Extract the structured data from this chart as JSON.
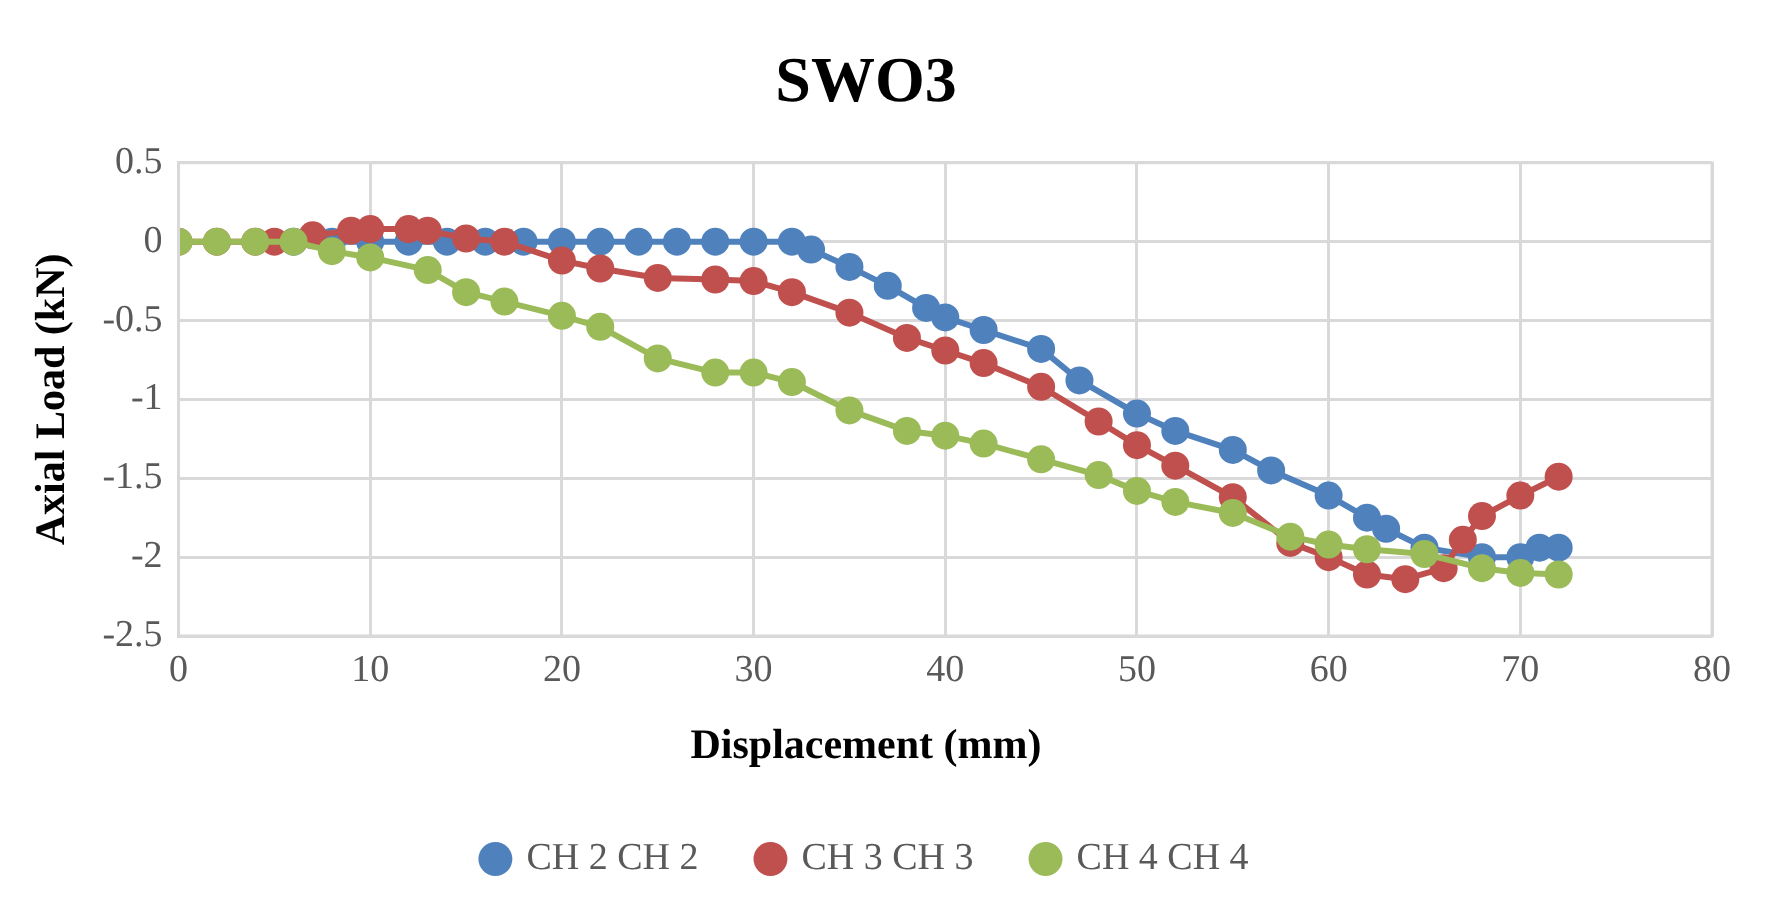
{
  "chart_data": {
    "type": "line",
    "title": "SWO3",
    "xlabel": "Displacement (mm)",
    "ylabel": "Axial Load (kN)",
    "xlim": [
      0,
      80
    ],
    "xticks": [
      0,
      10,
      20,
      30,
      40,
      50,
      60,
      70,
      80
    ],
    "ylim": [
      -2.5,
      0.5
    ],
    "yticks": [
      -2.5,
      -2,
      -1.5,
      -1,
      -0.5,
      0,
      0.5
    ],
    "grid": true,
    "legend": "bottom",
    "marker": "circle",
    "line_style": "solid",
    "series": [
      {
        "name": "CH 2 CH 2",
        "color": "#4f81bd",
        "x": [
          6,
          8,
          10,
          12,
          14,
          16,
          18,
          20,
          22,
          24,
          26,
          28,
          30,
          32,
          33,
          35,
          37,
          39,
          40,
          42,
          45,
          47,
          50,
          52,
          55,
          57,
          60,
          62,
          63,
          65,
          68,
          70,
          71,
          72
        ],
        "values": [
          0,
          0,
          0,
          0,
          0,
          0,
          0,
          0,
          0,
          0,
          0,
          0,
          0,
          0,
          -0.05,
          -0.16,
          -0.28,
          -0.42,
          -0.48,
          -0.56,
          -0.68,
          -0.88,
          -1.09,
          -1.2,
          -1.32,
          -1.45,
          -1.61,
          -1.75,
          -1.82,
          -1.94,
          -2,
          -2,
          -1.94,
          -1.94
        ]
      },
      {
        "name": "CH 3 CH 3",
        "color": "#c0504d",
        "x": [
          0,
          2,
          4,
          5,
          7,
          9,
          10,
          12,
          13,
          15,
          17,
          20,
          22,
          25,
          28,
          30,
          32,
          35,
          38,
          40,
          42,
          45,
          48,
          50,
          52,
          55,
          58,
          60,
          62,
          64,
          66,
          67,
          68,
          70,
          72
        ],
        "values": [
          0,
          0,
          0,
          0,
          0.04,
          0.07,
          0.08,
          0.08,
          0.07,
          0.02,
          0,
          -0.12,
          -0.17,
          -0.23,
          -0.24,
          -0.25,
          -0.32,
          -0.45,
          -0.61,
          -0.69,
          -0.77,
          -0.92,
          -1.14,
          -1.29,
          -1.42,
          -1.62,
          -1.91,
          -2,
          -2.11,
          -2.14,
          -2.07,
          -1.89,
          -1.74,
          -1.61,
          -1.49
        ]
      },
      {
        "name": "CH 4 CH 4",
        "color": "#9bbb59",
        "x": [
          0,
          2,
          4,
          6,
          8,
          10,
          13,
          15,
          17,
          20,
          22,
          25,
          28,
          30,
          32,
          35,
          38,
          40,
          42,
          45,
          48,
          50,
          52,
          55,
          58,
          60,
          62,
          65,
          68,
          70,
          72
        ],
        "values": [
          0,
          0,
          0,
          0,
          -0.06,
          -0.1,
          -0.18,
          -0.32,
          -0.38,
          -0.47,
          -0.54,
          -0.74,
          -0.83,
          -0.83,
          -0.89,
          -1.07,
          -1.2,
          -1.23,
          -1.28,
          -1.38,
          -1.48,
          -1.58,
          -1.65,
          -1.72,
          -1.87,
          -1.92,
          -1.95,
          -1.98,
          -2.07,
          -2.1,
          -2.11
        ]
      }
    ]
  }
}
